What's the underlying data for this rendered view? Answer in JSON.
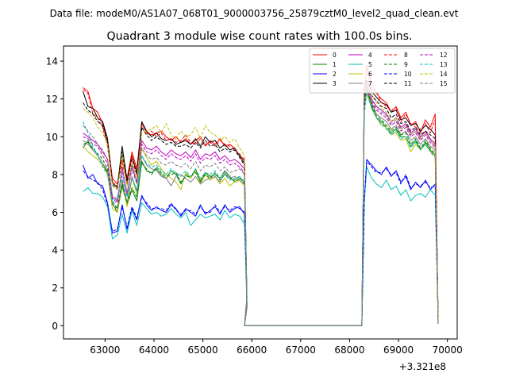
{
  "figure": {
    "suptitle": "Data file: modeM0/AS1A07_068T01_9000003756_25879cztM0_level2_quad_clean.evt"
  },
  "chart_data": {
    "type": "line",
    "title": "Quadrant 3 module wise count rates with 100.0s bins.",
    "xlabel": "",
    "ylabel": "",
    "x_offset_label": "+3.321e8",
    "xlim": [
      62150,
      70200
    ],
    "ylim": [
      -0.7,
      14.8
    ],
    "xticks": [
      63000,
      64000,
      65000,
      66000,
      67000,
      68000,
      69000,
      70000
    ],
    "xtick_labels": [
      "63000",
      "64000",
      "65000",
      "66000",
      "67000",
      "68000",
      "69000",
      "70000"
    ],
    "yticks": [
      0,
      2,
      4,
      6,
      8,
      10,
      12,
      14
    ],
    "ytick_labels": [
      "0",
      "2",
      "4",
      "6",
      "8",
      "10",
      "12",
      "14"
    ],
    "grid": false,
    "legend": {
      "placement": "top-right",
      "columns": 4
    },
    "x": {
      "segment1": {
        "start": 62550,
        "step": 100,
        "count": 34
      },
      "gap": {
        "start": 65850,
        "end": 68250,
        "value": 0
      },
      "segment2": {
        "start": 68250,
        "step": 100,
        "count": 16
      }
    },
    "series": [
      {
        "name": "0",
        "color": "#ff0000",
        "dash": "solid",
        "seg1": [
          12.6,
          12.4,
          11.5,
          11.3,
          10.7,
          9.8,
          7.8,
          7.5,
          8.8,
          7.8,
          9.2,
          8.3,
          10.7,
          10.2,
          10.1,
          10.2,
          10.3,
          10.0,
          9.8,
          10.0,
          9.7,
          9.9,
          9.6,
          9.8,
          10.0,
          9.5,
          9.8,
          9.6,
          9.9,
          9.5,
          9.6,
          9.4,
          9.0,
          8.8
        ],
        "seg2": [
          12.2,
          13.8,
          12.8,
          12.3,
          12.0,
          11.8,
          11.3,
          11.6,
          11.0,
          11.3,
          10.6,
          10.8,
          10.2,
          10.9,
          10.5,
          11.2
        ]
      },
      {
        "name": "1",
        "color": "#008000",
        "dash": "solid",
        "seg1": [
          9.4,
          9.8,
          9.3,
          9.0,
          8.6,
          8.1,
          6.5,
          6.0,
          7.4,
          6.4,
          7.2,
          6.6,
          8.7,
          8.2,
          8.1,
          8.3,
          8.0,
          7.8,
          8.2,
          8.0,
          7.5,
          8.0,
          7.8,
          8.3,
          7.6,
          8.1,
          7.9,
          8.0,
          7.8,
          8.2,
          7.9,
          7.6,
          7.8,
          7.6
        ],
        "seg2": [
          11.5,
          12.6,
          11.6,
          11.0,
          10.8,
          10.5,
          10.2,
          10.4,
          10.0,
          10.0,
          9.5,
          9.8,
          9.3,
          9.7,
          9.3,
          9.0
        ]
      },
      {
        "name": "2",
        "color": "#0000ff",
        "dash": "solid",
        "seg1": [
          8.5,
          7.8,
          8.0,
          7.5,
          7.4,
          6.5,
          4.9,
          5.0,
          6.4,
          5.1,
          6.2,
          5.6,
          6.9,
          6.4,
          6.1,
          6.3,
          6.1,
          6.0,
          6.4,
          6.2,
          5.8,
          6.2,
          6.0,
          5.8,
          6.4,
          5.9,
          6.1,
          6.3,
          5.9,
          6.4,
          6.0,
          6.2,
          6.3,
          5.9
        ],
        "seg2": [
          6.5,
          8.8,
          8.5,
          8.2,
          8.0,
          8.4,
          7.9,
          8.2,
          7.6,
          7.9,
          7.2,
          7.6,
          7.3,
          7.7,
          7.2,
          7.5
        ]
      },
      {
        "name": "3",
        "color": "#000000",
        "dash": "solid",
        "seg1": [
          12.4,
          11.6,
          11.5,
          11.0,
          10.8,
          9.9,
          7.6,
          7.3,
          9.5,
          7.7,
          9.0,
          8.1,
          10.8,
          10.3,
          10.0,
          10.2,
          9.9,
          9.8,
          9.9,
          9.6,
          9.7,
          9.8,
          9.6,
          9.9,
          9.5,
          10.0,
          9.7,
          9.8,
          9.4,
          9.6,
          9.3,
          9.4,
          9.0,
          8.6
        ],
        "seg2": [
          12.5,
          13.0,
          12.4,
          12.1,
          11.8,
          11.7,
          11.3,
          11.4,
          10.9,
          11.0,
          10.6,
          10.7,
          10.3,
          10.6,
          10.4,
          10.1
        ]
      },
      {
        "name": "4",
        "color": "#bf00bf",
        "dash": "solid",
        "seg1": [
          10.2,
          10.0,
          9.8,
          9.6,
          9.2,
          8.8,
          6.8,
          6.6,
          8.4,
          7.0,
          8.5,
          7.6,
          9.8,
          9.4,
          9.3,
          9.5,
          9.2,
          9.0,
          9.3,
          9.1,
          9.0,
          9.2,
          8.9,
          9.3,
          8.8,
          9.1,
          9.0,
          9.2,
          8.8,
          9.0,
          8.7,
          8.8,
          8.6,
          8.3
        ],
        "seg2": [
          12.2,
          12.8,
          12.0,
          11.6,
          11.4,
          11.2,
          10.8,
          11.0,
          10.5,
          10.7,
          10.2,
          10.4,
          10.0,
          10.3,
          9.9,
          9.6
        ]
      },
      {
        "name": "5",
        "color": "#00bfbf",
        "dash": "solid",
        "seg1": [
          7.1,
          7.3,
          7.0,
          7.0,
          6.8,
          6.3,
          4.6,
          4.8,
          5.9,
          4.9,
          6.1,
          5.3,
          6.5,
          6.2,
          5.9,
          6.0,
          5.8,
          5.9,
          6.2,
          5.9,
          5.7,
          6.0,
          5.3,
          5.6,
          5.9,
          5.7,
          5.8,
          5.9,
          5.6,
          6.1,
          5.7,
          5.9,
          5.8,
          5.4
        ],
        "seg2": [
          6.5,
          8.4,
          7.8,
          7.5,
          7.3,
          7.7,
          7.2,
          7.4,
          6.9,
          7.2,
          6.6,
          6.9,
          7.0,
          6.8,
          7.2,
          6.9
        ]
      },
      {
        "name": "6",
        "color": "#bfbf00",
        "dash": "solid",
        "seg1": [
          9.5,
          9.2,
          9.0,
          8.8,
          8.5,
          8.0,
          6.2,
          6.0,
          7.6,
          6.3,
          7.8,
          7.0,
          9.4,
          8.9,
          8.5,
          8.7,
          8.3,
          8.0,
          7.8,
          7.6,
          7.2,
          8.1,
          7.8,
          8.2,
          7.5,
          8.0,
          7.7,
          7.9,
          7.5,
          7.8,
          7.4,
          7.6,
          7.7,
          7.4
        ],
        "seg2": [
          11.8,
          12.4,
          11.5,
          11.0,
          10.6,
          10.5,
          10.1,
          10.2,
          9.8,
          9.9,
          9.2,
          9.6,
          9.3,
          9.6,
          9.2,
          9.0
        ]
      },
      {
        "name": "7",
        "color": "#808080",
        "dash": "solid",
        "seg1": [
          9.8,
          9.6,
          9.3,
          9.0,
          8.6,
          8.2,
          6.4,
          6.2,
          7.7,
          6.5,
          7.9,
          7.1,
          9.0,
          8.5,
          8.3,
          8.2,
          7.9,
          7.8,
          7.4,
          7.9,
          8.0,
          7.8,
          7.6,
          7.9,
          7.5,
          7.7,
          7.8,
          7.9,
          7.6,
          8.1,
          7.8,
          7.9,
          7.7,
          7.5
        ],
        "seg2": [
          12.0,
          12.6,
          11.8,
          11.2,
          11.0,
          10.8,
          10.4,
          10.6,
          10.1,
          10.3,
          9.8,
          10.0,
          9.6,
          9.9,
          9.5,
          9.3
        ]
      },
      {
        "name": "8",
        "color": "#ff0000",
        "dash": "dashed",
        "seg1": [
          12.5,
          12.3,
          11.2,
          11.0,
          10.5,
          9.5,
          7.6,
          7.4,
          8.6,
          7.6,
          9.0,
          8.0,
          10.5,
          10.1,
          10.3,
          10.0,
          10.2,
          9.8,
          9.9,
          9.7,
          9.8,
          10.1,
          9.7,
          9.6,
          9.9,
          9.6,
          9.7,
          9.5,
          9.8,
          9.6,
          9.5,
          9.3,
          9.1,
          8.7
        ],
        "seg2": [
          12.6,
          13.6,
          12.5,
          12.4,
          11.8,
          11.6,
          11.4,
          11.5,
          10.8,
          11.2,
          10.7,
          10.5,
          10.4,
          10.7,
          10.2,
          10.9
        ]
      },
      {
        "name": "9",
        "color": "#008000",
        "dash": "dashed",
        "seg1": [
          9.6,
          9.7,
          9.4,
          9.1,
          8.8,
          8.3,
          6.6,
          6.2,
          7.5,
          6.5,
          7.3,
          6.8,
          8.6,
          8.3,
          8.0,
          8.4,
          8.1,
          7.9,
          8.0,
          8.1,
          7.6,
          7.9,
          7.9,
          8.1,
          7.7,
          8.0,
          7.8,
          8.1,
          7.7,
          8.0,
          7.8,
          7.7,
          7.9,
          7.5
        ],
        "seg2": [
          11.6,
          12.5,
          11.7,
          11.1,
          10.9,
          10.6,
          10.3,
          10.5,
          10.1,
          10.2,
          9.6,
          9.9,
          9.4,
          9.8,
          9.4,
          9.1
        ]
      },
      {
        "name": "10",
        "color": "#0000ff",
        "dash": "dashed",
        "seg1": [
          8.2,
          7.9,
          7.7,
          7.6,
          7.2,
          6.4,
          5.0,
          5.1,
          6.3,
          5.2,
          6.3,
          5.7,
          6.8,
          6.5,
          6.2,
          6.2,
          6.2,
          6.1,
          6.5,
          6.1,
          5.9,
          6.1,
          6.1,
          5.9,
          6.3,
          6.0,
          6.0,
          6.4,
          6.0,
          6.3,
          6.1,
          6.3,
          6.2,
          6.0
        ],
        "seg2": [
          6.6,
          8.7,
          8.4,
          8.1,
          8.1,
          8.3,
          8.0,
          8.1,
          7.5,
          8.0,
          7.3,
          7.5,
          7.4,
          7.6,
          7.3,
          7.4
        ]
      },
      {
        "name": "11",
        "color": "#000000",
        "dash": "dashed",
        "seg1": [
          11.8,
          11.4,
          11.2,
          10.8,
          10.6,
          9.7,
          7.5,
          7.2,
          9.2,
          7.5,
          8.8,
          8.0,
          10.5,
          10.1,
          9.8,
          10.0,
          9.8,
          9.6,
          9.7,
          9.5,
          9.5,
          9.6,
          9.4,
          9.7,
          9.4,
          9.8,
          9.5,
          9.6,
          9.2,
          9.4,
          9.2,
          9.3,
          8.9,
          8.5
        ],
        "seg2": [
          12.2,
          12.7,
          12.2,
          11.9,
          11.6,
          11.5,
          11.0,
          11.2,
          10.7,
          10.8,
          10.3,
          10.5,
          10.1,
          10.3,
          10.1,
          9.9
        ]
      },
      {
        "name": "12",
        "color": "#bf00bf",
        "dash": "dashed",
        "seg1": [
          10.0,
          9.9,
          9.6,
          9.5,
          9.0,
          8.6,
          6.7,
          6.5,
          8.2,
          6.9,
          8.3,
          7.5,
          9.6,
          9.2,
          9.1,
          9.3,
          9.0,
          8.8,
          9.1,
          8.9,
          8.8,
          9.0,
          8.7,
          9.1,
          8.6,
          8.9,
          8.8,
          9.0,
          8.6,
          8.8,
          8.5,
          8.6,
          8.4,
          8.1
        ],
        "seg2": [
          12.0,
          12.6,
          11.8,
          11.4,
          11.2,
          11.0,
          10.6,
          10.8,
          10.3,
          10.5,
          10.0,
          10.2,
          9.8,
          10.1,
          9.7,
          9.4
        ]
      },
      {
        "name": "13",
        "color": "#00bfbf",
        "dash": "dashed",
        "seg1": [
          10.8,
          10.2,
          9.5,
          9.0,
          8.4,
          8.0,
          6.5,
          6.8,
          7.9,
          6.8,
          7.8,
          7.2,
          9.0,
          8.6,
          8.4,
          8.5,
          8.2,
          8.0,
          8.3,
          8.1,
          7.9,
          8.2,
          7.9,
          8.3,
          7.8,
          8.1,
          8.0,
          8.2,
          7.8,
          8.0,
          7.7,
          7.8,
          7.9,
          7.6
        ],
        "seg2": [
          11.2,
          12.3,
          11.5,
          11.0,
          10.7,
          10.4,
          10.1,
          10.3,
          9.9,
          10.0,
          9.4,
          9.7,
          9.3,
          9.6,
          9.2,
          8.9
        ]
      },
      {
        "name": "14",
        "color": "#bfbf00",
        "dash": "dashed",
        "seg1": [
          11.5,
          11.3,
          11.0,
          10.5,
          10.2,
          9.6,
          7.4,
          7.2,
          9.0,
          7.4,
          8.7,
          7.8,
          10.2,
          10.3,
          10.4,
          10.6,
          10.2,
          10.7,
          10.1,
          9.9,
          10.3,
          10.0,
          10.1,
          10.5,
          9.9,
          10.6,
          10.2,
          10.1,
          9.8,
          10.0,
          9.7,
          9.9,
          9.4,
          9.0
        ],
        "seg2": [
          12.3,
          12.9,
          12.2,
          11.8,
          11.5,
          11.3,
          10.8,
          11.0,
          10.4,
          10.6,
          10.1,
          10.3,
          9.9,
          10.2,
          9.8,
          9.5
        ]
      },
      {
        "name": "15",
        "color": "#808080",
        "dash": "dashed",
        "seg1": [
          10.6,
          10.3,
          10.0,
          9.6,
          9.3,
          8.8,
          6.9,
          6.7,
          8.3,
          7.0,
          8.4,
          7.6,
          9.4,
          9.0,
          8.8,
          8.9,
          8.6,
          8.5,
          8.7,
          8.5,
          8.4,
          8.6,
          8.3,
          8.7,
          8.2,
          8.5,
          8.4,
          8.6,
          8.2,
          8.4,
          8.1,
          8.2,
          8.3,
          8.0
        ],
        "seg2": [
          12.1,
          12.7,
          11.9,
          11.5,
          11.3,
          11.1,
          10.7,
          10.9,
          10.4,
          10.6,
          10.1,
          10.3,
          9.9,
          10.2,
          9.8,
          9.5
        ]
      }
    ]
  }
}
